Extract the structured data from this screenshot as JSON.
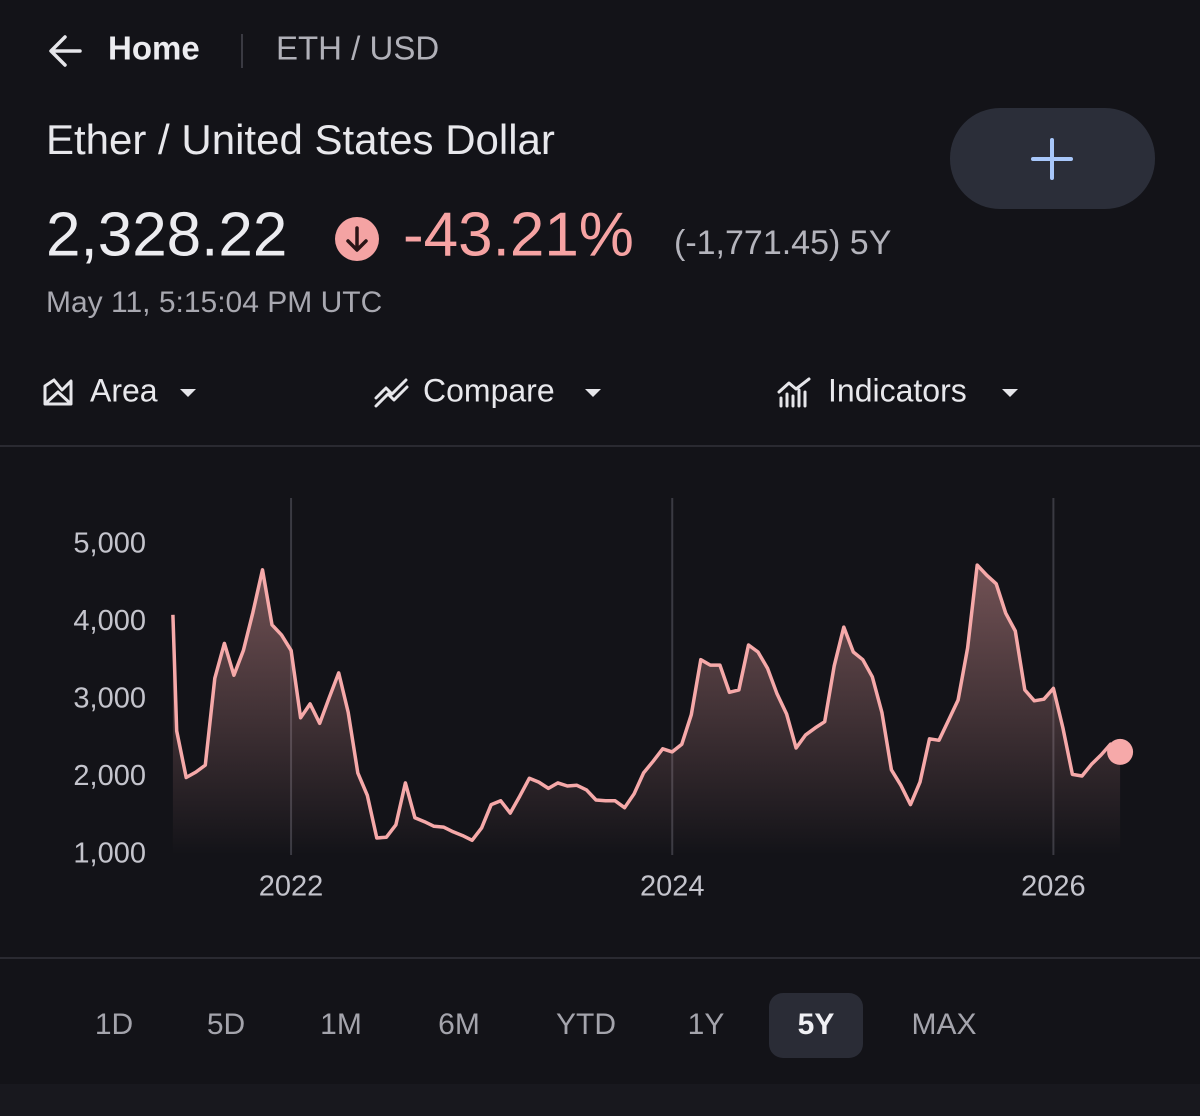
{
  "nav": {
    "home": "Home",
    "symbol": "ETH / USD"
  },
  "title": "Ether / United States Dollar",
  "quote": {
    "price": "2,328.22",
    "change_percent": "-43.21%",
    "change": "(-1,771.45)",
    "period": "5Y",
    "timestamp": "May 11, 5:15:04 PM UTC"
  },
  "toolbar": [
    "Area",
    "Compare",
    "Indicators"
  ],
  "chart_data": {
    "type": "area",
    "color": "#f6a9a9",
    "xlim": [
      2021.37,
      2026.36
    ],
    "xticks": [
      2022,
      2024,
      2026
    ],
    "ylim": [
      1000,
      5000
    ],
    "yticks": [
      {
        "value": 5000,
        "label": "5,000"
      },
      {
        "value": 4000,
        "label": "4,000"
      },
      {
        "value": 3000,
        "label": "3,000"
      },
      {
        "value": 2000,
        "label": "2,000"
      },
      {
        "value": 1000,
        "label": "1,000"
      }
    ],
    "xgrid": true,
    "end_marker": true,
    "x": [
      2021.38,
      2021.4,
      2021.45,
      2021.5,
      2021.55,
      2021.6,
      2021.65,
      2021.7,
      2021.75,
      2021.8,
      2021.85,
      2021.9,
      2021.95,
      2022.0,
      2022.05,
      2022.1,
      2022.15,
      2022.2,
      2022.25,
      2022.3,
      2022.35,
      2022.4,
      2022.45,
      2022.5,
      2022.55,
      2022.6,
      2022.65,
      2022.7,
      2022.75,
      2022.8,
      2022.85,
      2022.9,
      2022.95,
      2023.0,
      2023.05,
      2023.1,
      2023.15,
      2023.2,
      2023.25,
      2023.3,
      2023.35,
      2023.4,
      2023.45,
      2023.5,
      2023.55,
      2023.6,
      2023.65,
      2023.7,
      2023.75,
      2023.8,
      2023.85,
      2023.9,
      2023.95,
      2024.0,
      2024.05,
      2024.1,
      2024.15,
      2024.2,
      2024.25,
      2024.3,
      2024.35,
      2024.4,
      2024.45,
      2024.5,
      2024.55,
      2024.6,
      2024.65,
      2024.7,
      2024.75,
      2024.8,
      2024.85,
      2024.9,
      2024.95,
      2025.0,
      2025.05,
      2025.1,
      2025.15,
      2025.2,
      2025.25,
      2025.3,
      2025.35,
      2025.4,
      2025.45,
      2025.5,
      2025.55,
      2025.6,
      2025.65,
      2025.7,
      2025.75,
      2025.8,
      2025.85,
      2025.9,
      2025.95,
      2026.0,
      2026.05,
      2026.1,
      2026.15,
      2026.2,
      2026.25,
      2026.3,
      2026.35
    ],
    "values": [
      4100,
      2600,
      2000,
      2070,
      2160,
      3280,
      3730,
      3320,
      3640,
      4130,
      4680,
      3970,
      3840,
      3640,
      2770,
      2950,
      2700,
      3030,
      3350,
      2840,
      2060,
      1770,
      1220,
      1230,
      1390,
      1930,
      1480,
      1430,
      1370,
      1360,
      1300,
      1250,
      1190,
      1350,
      1650,
      1700,
      1540,
      1760,
      1990,
      1940,
      1860,
      1930,
      1890,
      1900,
      1840,
      1710,
      1700,
      1700,
      1610,
      1790,
      2060,
      2210,
      2370,
      2330,
      2430,
      2810,
      3520,
      3450,
      3450,
      3100,
      3130,
      3710,
      3620,
      3410,
      3080,
      2820,
      2380,
      2550,
      2640,
      2720,
      3440,
      3940,
      3620,
      3520,
      3300,
      2840,
      2100,
      1900,
      1650,
      1940,
      2500,
      2480,
      2740,
      3000,
      3670,
      4740,
      4610,
      4500,
      4120,
      3890,
      3130,
      2990,
      3010,
      3150,
      2640,
      2040,
      2020,
      2170,
      2290,
      2430,
      2330
    ]
  },
  "ranges": [
    "1D",
    "5D",
    "1M",
    "6M",
    "YTD",
    "1Y",
    "5Y",
    "MAX"
  ],
  "selected_range": 6
}
